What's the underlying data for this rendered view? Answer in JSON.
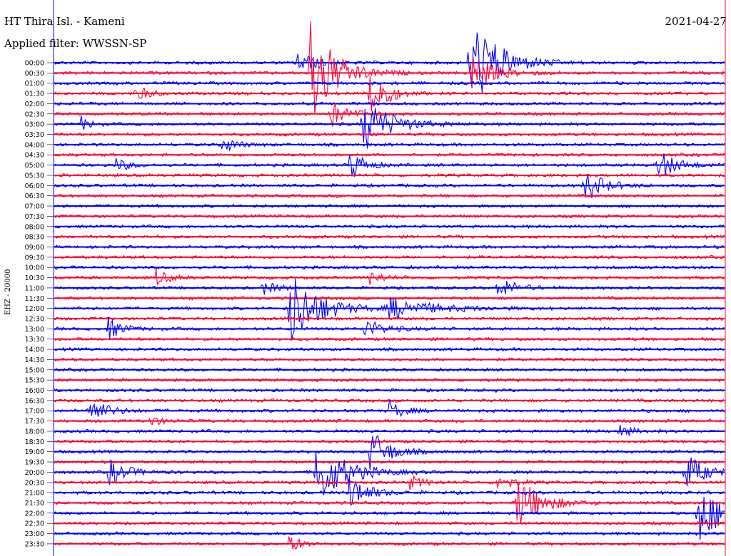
{
  "header": {
    "station_title": "HT Thira Isl. - Kameni",
    "filter_text": "Applied filter: WWSSN-SP",
    "date": "2021-04-27"
  },
  "channel_label": "EHZ - 20000",
  "chart_data": {
    "type": "line",
    "title": "HT Thira Isl. - Kameni",
    "subtitle": "Applied filter: WWSSN-SP",
    "ylabel": "EHZ - 20000",
    "row_labels": [
      "00:00",
      "00:30",
      "01:00",
      "01:30",
      "02:00",
      "02:30",
      "03:00",
      "03:30",
      "04:00",
      "04:30",
      "05:00",
      "05:30",
      "06:00",
      "06:30",
      "07:00",
      "07:30",
      "08:00",
      "08:30",
      "09:00",
      "09:30",
      "10:00",
      "10:30",
      "11:00",
      "11:30",
      "12:00",
      "12:30",
      "13:00",
      "13:30",
      "14:00",
      "14:30",
      "15:00",
      "15:30",
      "16:00",
      "16:30",
      "17:00",
      "17:30",
      "18:00",
      "18:30",
      "19:00",
      "19:30",
      "20:00",
      "20:30",
      "21:00",
      "21:30",
      "22:00",
      "22:30",
      "23:00",
      "23:30"
    ],
    "trace_colors": [
      "#0000ff",
      "#ff0033"
    ],
    "minutes_per_row": 30,
    "events": [
      {
        "row": 0,
        "t": 0.36,
        "amp": 18,
        "dur": 0.04
      },
      {
        "row": 0,
        "t": 0.62,
        "amp": 70,
        "dur": 0.06
      },
      {
        "row": 1,
        "t": 0.38,
        "amp": 90,
        "dur": 0.05
      },
      {
        "row": 1,
        "t": 0.62,
        "amp": 30,
        "dur": 0.05
      },
      {
        "row": 3,
        "t": 0.12,
        "amp": 12,
        "dur": 0.03
      },
      {
        "row": 3,
        "t": 0.47,
        "amp": 55,
        "dur": 0.03
      },
      {
        "row": 5,
        "t": 0.41,
        "amp": 20,
        "dur": 0.04
      },
      {
        "row": 6,
        "t": 0.04,
        "amp": 10,
        "dur": 0.02
      },
      {
        "row": 6,
        "t": 0.46,
        "amp": 40,
        "dur": 0.06
      },
      {
        "row": 8,
        "t": 0.25,
        "amp": 12,
        "dur": 0.03
      },
      {
        "row": 10,
        "t": 0.09,
        "amp": 10,
        "dur": 0.03
      },
      {
        "row": 10,
        "t": 0.44,
        "amp": 25,
        "dur": 0.03
      },
      {
        "row": 10,
        "t": 0.9,
        "amp": 22,
        "dur": 0.04
      },
      {
        "row": 12,
        "t": 0.79,
        "amp": 25,
        "dur": 0.04
      },
      {
        "row": 21,
        "t": 0.15,
        "amp": 12,
        "dur": 0.03
      },
      {
        "row": 21,
        "t": 0.47,
        "amp": 10,
        "dur": 0.03
      },
      {
        "row": 22,
        "t": 0.31,
        "amp": 10,
        "dur": 0.03
      },
      {
        "row": 22,
        "t": 0.66,
        "amp": 16,
        "dur": 0.04
      },
      {
        "row": 24,
        "t": 0.35,
        "amp": 60,
        "dur": 0.06
      },
      {
        "row": 24,
        "t": 0.5,
        "amp": 14,
        "dur": 0.1
      },
      {
        "row": 26,
        "t": 0.08,
        "amp": 16,
        "dur": 0.03
      },
      {
        "row": 26,
        "t": 0.46,
        "amp": 16,
        "dur": 0.04
      },
      {
        "row": 34,
        "t": 0.05,
        "amp": 20,
        "dur": 0.04
      },
      {
        "row": 34,
        "t": 0.5,
        "amp": 14,
        "dur": 0.03
      },
      {
        "row": 35,
        "t": 0.14,
        "amp": 8,
        "dur": 0.03
      },
      {
        "row": 36,
        "t": 0.84,
        "amp": 10,
        "dur": 0.03
      },
      {
        "row": 38,
        "t": 0.47,
        "amp": 35,
        "dur": 0.04
      },
      {
        "row": 40,
        "t": 0.08,
        "amp": 20,
        "dur": 0.04
      },
      {
        "row": 40,
        "t": 0.39,
        "amp": 50,
        "dur": 0.06
      },
      {
        "row": 40,
        "t": 0.94,
        "amp": 30,
        "dur": 0.04
      },
      {
        "row": 41,
        "t": 0.53,
        "amp": 10,
        "dur": 0.03
      },
      {
        "row": 41,
        "t": 0.66,
        "amp": 14,
        "dur": 0.03
      },
      {
        "row": 42,
        "t": 0.44,
        "amp": 25,
        "dur": 0.04
      },
      {
        "row": 43,
        "t": 0.69,
        "amp": 40,
        "dur": 0.05
      },
      {
        "row": 44,
        "t": 0.96,
        "amp": 45,
        "dur": 0.05
      },
      {
        "row": 47,
        "t": 0.35,
        "amp": 12,
        "dur": 0.03
      }
    ]
  }
}
